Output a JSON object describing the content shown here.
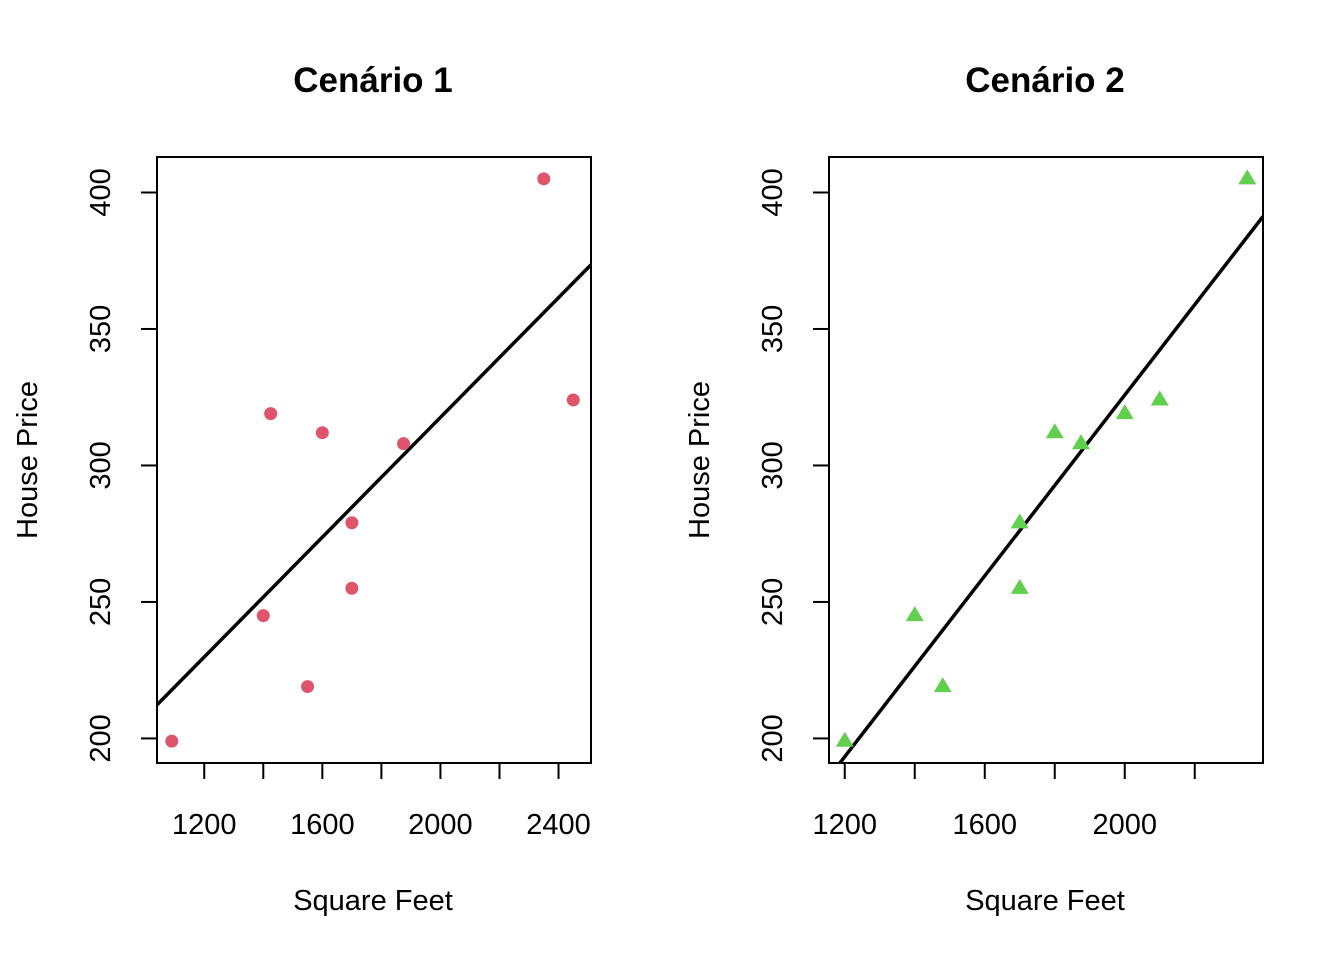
{
  "chart_data": [
    {
      "type": "scatter",
      "title": "Cenário 1",
      "xlabel": "Square Feet",
      "ylabel": "House Price",
      "xlim": [
        1040,
        2510
      ],
      "ylim": [
        191,
        413
      ],
      "xticks": [
        1200,
        1400,
        1600,
        1800,
        2000,
        2200,
        2400
      ],
      "xtick_labels": [
        "1200",
        "",
        "1600",
        "",
        "2000",
        "",
        "2400"
      ],
      "yticks": [
        200,
        250,
        300,
        350,
        400
      ],
      "ytick_labels": [
        "200",
        "250",
        "300",
        "350",
        "400"
      ],
      "marker": "circle",
      "color": "#DF536B",
      "points": [
        {
          "x": 1090,
          "y": 199
        },
        {
          "x": 1400,
          "y": 245
        },
        {
          "x": 1425,
          "y": 319
        },
        {
          "x": 1550,
          "y": 219
        },
        {
          "x": 1600,
          "y": 312
        },
        {
          "x": 1700,
          "y": 279
        },
        {
          "x": 1700,
          "y": 255
        },
        {
          "x": 1875,
          "y": 308
        },
        {
          "x": 2350,
          "y": 405
        },
        {
          "x": 2450,
          "y": 324
        }
      ],
      "fit_line": {
        "intercept": 98.2,
        "slope": 0.1097
      }
    },
    {
      "type": "scatter",
      "title": "Cenário 2",
      "xlabel": "Square Feet",
      "ylabel": "House Price",
      "xlim": [
        1155,
        2395
      ],
      "ylim": [
        191,
        413
      ],
      "xticks": [
        1200,
        1400,
        1600,
        1800,
        2000,
        2200
      ],
      "xtick_labels": [
        "1200",
        "",
        "1600",
        "",
        "2000",
        ""
      ],
      "yticks": [
        200,
        250,
        300,
        350,
        400
      ],
      "ytick_labels": [
        "200",
        "250",
        "300",
        "350",
        "400"
      ],
      "marker": "triangle",
      "color": "#61D04F",
      "points": [
        {
          "x": 1200,
          "y": 199
        },
        {
          "x": 1400,
          "y": 245
        },
        {
          "x": 1480,
          "y": 219
        },
        {
          "x": 1700,
          "y": 279
        },
        {
          "x": 1700,
          "y": 255
        },
        {
          "x": 1800,
          "y": 312
        },
        {
          "x": 1875,
          "y": 308
        },
        {
          "x": 2000,
          "y": 319
        },
        {
          "x": 2100,
          "y": 324
        },
        {
          "x": 2350,
          "y": 405
        }
      ],
      "fit_line": {
        "intercept": -5.4,
        "slope": 0.1656
      }
    }
  ]
}
